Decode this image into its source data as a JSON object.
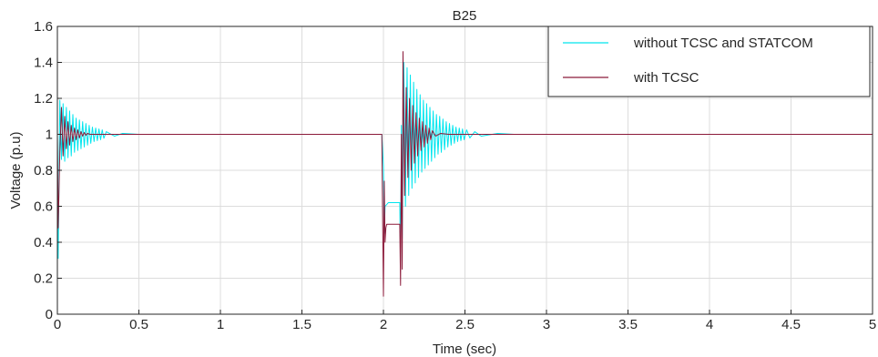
{
  "chart_data": {
    "type": "line",
    "title": "B25",
    "xlabel": "Time (sec)",
    "ylabel": "Voltage (p.u)",
    "xlim": [
      0,
      5
    ],
    "ylim": [
      0,
      1.6
    ],
    "xticks": [
      0,
      0.5,
      1,
      1.5,
      2,
      2.5,
      3,
      3.5,
      4,
      4.5,
      5
    ],
    "xtick_labels": [
      "0",
      "0.5",
      "1",
      "1.5",
      "2",
      "2.5",
      "3",
      "3.5",
      "4",
      "4.5",
      "5"
    ],
    "yticks": [
      0,
      0.2,
      0.4,
      0.6,
      0.8,
      1,
      1.2,
      1.4,
      1.6
    ],
    "ytick_labels": [
      "0",
      "0.2",
      "0.4",
      "0.6",
      "0.8",
      "1",
      "1.2",
      "1.4",
      "1.6"
    ],
    "grid": true,
    "legend_position": "top-right",
    "series": [
      {
        "name": "without TCSC and STATCOM",
        "color": "#00e5ee",
        "x": [
          0,
          0.005,
          0.015,
          0.025,
          0.035,
          0.045,
          0.055,
          0.065,
          0.075,
          0.085,
          0.095,
          0.105,
          0.115,
          0.125,
          0.135,
          0.145,
          0.155,
          0.165,
          0.175,
          0.185,
          0.195,
          0.205,
          0.215,
          0.225,
          0.235,
          0.245,
          0.255,
          0.265,
          0.275,
          0.285,
          0.3,
          0.35,
          0.4,
          0.5,
          0.6,
          0.7,
          1.0,
          1.5,
          1.99,
          2.0,
          2.005,
          2.01,
          2.02,
          2.03,
          2.05,
          2.08,
          2.1,
          2.105,
          2.11,
          2.115,
          2.125,
          2.135,
          2.145,
          2.155,
          2.165,
          2.175,
          2.185,
          2.195,
          2.205,
          2.215,
          2.225,
          2.235,
          2.245,
          2.255,
          2.265,
          2.275,
          2.285,
          2.295,
          2.305,
          2.315,
          2.325,
          2.335,
          2.345,
          2.355,
          2.365,
          2.375,
          2.385,
          2.395,
          2.405,
          2.415,
          2.425,
          2.435,
          2.445,
          2.455,
          2.465,
          2.475,
          2.485,
          2.495,
          2.51,
          2.53,
          2.56,
          2.6,
          2.7,
          2.8,
          2.9,
          3.0,
          3.5,
          4.0,
          4.5,
          5.0
        ],
        "y": [
          1.0,
          0.31,
          1.19,
          0.86,
          1.17,
          0.85,
          1.15,
          0.87,
          1.13,
          0.88,
          1.11,
          0.9,
          1.09,
          0.91,
          1.08,
          0.92,
          1.07,
          0.93,
          1.06,
          0.94,
          1.05,
          0.95,
          1.04,
          0.96,
          1.035,
          0.965,
          1.03,
          0.97,
          1.025,
          0.978,
          1.015,
          0.99,
          1.005,
          1.0,
          1.0,
          1.0,
          1.0,
          1.0,
          1.0,
          0.82,
          0.45,
          0.6,
          0.61,
          0.62,
          0.62,
          0.62,
          0.62,
          0.3,
          1.05,
          0.42,
          1.4,
          0.6,
          1.37,
          0.66,
          1.33,
          0.7,
          1.29,
          0.73,
          1.25,
          0.76,
          1.22,
          0.79,
          1.19,
          0.81,
          1.17,
          0.83,
          1.15,
          0.85,
          1.13,
          0.87,
          1.11,
          0.89,
          1.1,
          0.9,
          1.085,
          0.915,
          1.07,
          0.93,
          1.06,
          0.94,
          1.05,
          0.95,
          1.04,
          0.96,
          1.035,
          0.965,
          1.03,
          0.97,
          1.025,
          0.98,
          1.015,
          0.99,
          1.005,
          1.0,
          1.0,
          1.0,
          1.0,
          1.0,
          1.0,
          1.0
        ]
      },
      {
        "name": "with TCSC",
        "color": "#8b1a3a",
        "x": [
          0,
          0.005,
          0.015,
          0.025,
          0.035,
          0.045,
          0.055,
          0.065,
          0.075,
          0.085,
          0.095,
          0.105,
          0.115,
          0.125,
          0.135,
          0.145,
          0.155,
          0.165,
          0.175,
          0.185,
          0.2,
          0.25,
          0.3,
          0.5,
          1.0,
          1.5,
          1.99,
          2.0,
          2.005,
          2.01,
          2.015,
          2.02,
          2.03,
          2.05,
          2.08,
          2.1,
          2.105,
          2.11,
          2.115,
          2.12,
          2.13,
          2.14,
          2.15,
          2.16,
          2.17,
          2.18,
          2.19,
          2.2,
          2.21,
          2.22,
          2.23,
          2.24,
          2.25,
          2.26,
          2.27,
          2.28,
          2.29,
          2.3,
          2.32,
          2.35,
          2.4,
          2.5,
          3.0,
          3.5,
          4.0,
          4.5,
          5.0
        ],
        "y": [
          1.0,
          0.48,
          0.9,
          1.15,
          0.88,
          1.1,
          0.92,
          1.07,
          0.94,
          1.05,
          0.96,
          1.035,
          0.97,
          1.025,
          0.98,
          1.015,
          0.99,
          1.01,
          0.995,
          1.005,
          1.0,
          1.0,
          1.0,
          1.0,
          1.0,
          1.0,
          1.0,
          0.1,
          0.74,
          0.4,
          0.48,
          0.5,
          0.5,
          0.5,
          0.5,
          0.5,
          0.16,
          1.0,
          0.25,
          1.46,
          0.66,
          1.26,
          0.76,
          1.2,
          0.8,
          1.16,
          0.84,
          1.12,
          0.88,
          1.09,
          0.91,
          1.07,
          0.93,
          1.05,
          0.95,
          1.035,
          0.97,
          1.02,
          0.99,
          1.005,
          1.0,
          1.0,
          1.0,
          1.0,
          1.0,
          1.0,
          1.0
        ]
      }
    ]
  }
}
